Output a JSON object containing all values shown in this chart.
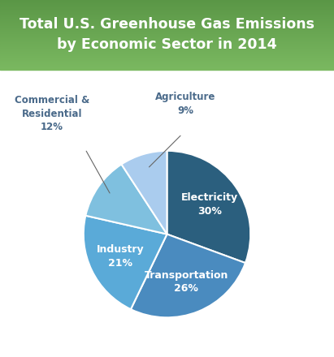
{
  "title_line1": "Total U.S. Greenhouse Gas Emissions",
  "title_line2": "by Economic Sector in 2014",
  "title_color": "#ffffff",
  "title_bg_top": "#5a9646",
  "title_bg_bot": "#7ab860",
  "background_color": "#ffffff",
  "slices": [
    {
      "label": "Electricity",
      "value": 30,
      "color": "#2b5f7e",
      "text_color": "#ffffff",
      "inside": true
    },
    {
      "label": "Transportation",
      "value": 26,
      "color": "#4a8bbf",
      "text_color": "#ffffff",
      "inside": true
    },
    {
      "label": "Industry",
      "value": 21,
      "color": "#5aaad8",
      "text_color": "#ffffff",
      "inside": true
    },
    {
      "label": "Commercial &\nResidential",
      "value": 12,
      "color": "#7fc0df",
      "text_color": "#4a6a8a",
      "inside": false
    },
    {
      "label": "Agriculture",
      "value": 9,
      "color": "#aaccee",
      "text_color": "#4a6a8a",
      "inside": false
    }
  ],
  "figsize": [
    4.11,
    4.4
  ],
  "dpi": 100
}
